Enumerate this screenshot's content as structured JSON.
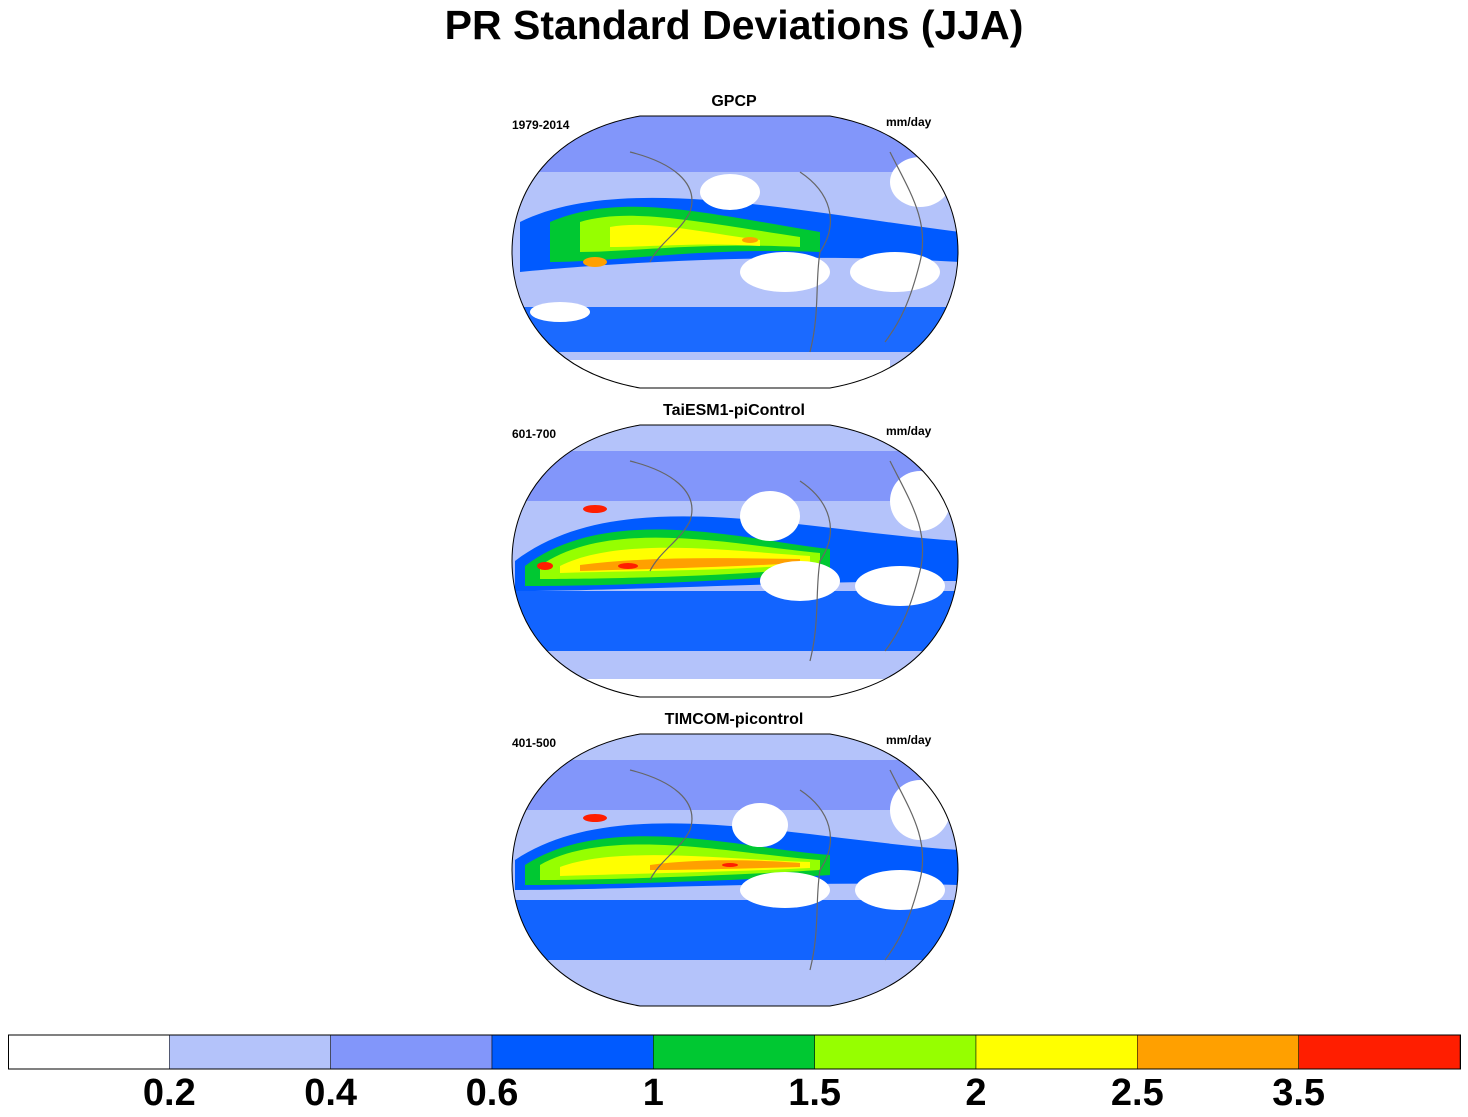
{
  "title": "PR Standard Deviations (JJA)",
  "panels": [
    {
      "title": "GPCP",
      "period": "1979-2014",
      "units": "mm/day"
    },
    {
      "title": "TaiESM1-piControl",
      "period": "601-700",
      "units": "mm/day"
    },
    {
      "title": "TIMCOM-picontrol",
      "period": "401-500",
      "units": "mm/day"
    }
  ],
  "colorbar": {
    "colors": [
      "#ffffff",
      "#b4c3fa",
      "#8296fa",
      "#005aff",
      "#00c832",
      "#96ff00",
      "#ffff00",
      "#ffa000",
      "#ff1e00"
    ],
    "labels": [
      "0.2",
      "0.4",
      "0.6",
      "1",
      "1.5",
      "2",
      "2.5",
      "3.5"
    ]
  }
}
